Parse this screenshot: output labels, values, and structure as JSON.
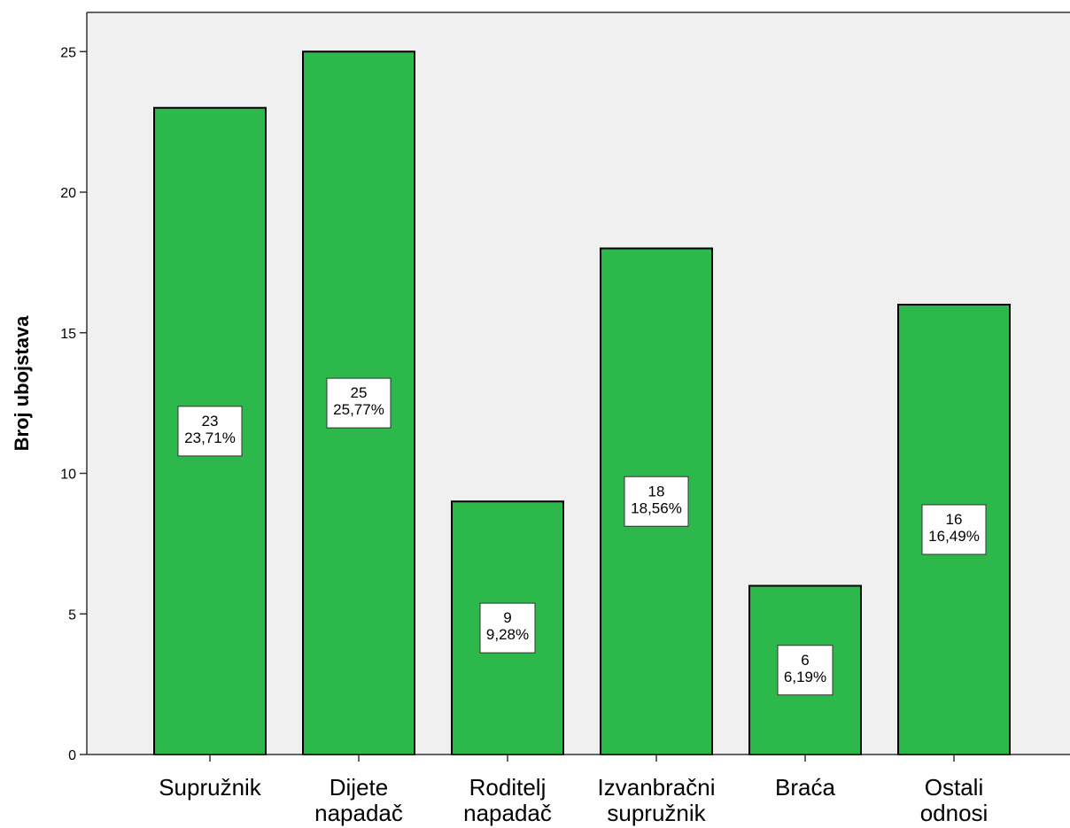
{
  "chart_data": {
    "type": "bar",
    "ylabel": "Broj ubojstava",
    "ylim": [
      0,
      26
    ],
    "yticks": [
      0,
      5,
      10,
      15,
      20,
      25
    ],
    "grid": false,
    "colors": {
      "bar_fill": "#2db84b",
      "plot_bg": "#f0f0f0",
      "axis": "#333333",
      "label_box": "#ffffff"
    },
    "categories": [
      [
        "Supružnik"
      ],
      [
        "Dijete",
        "napadač"
      ],
      [
        "Roditelj",
        "napadač"
      ],
      [
        "Izvanbračni",
        "supružnik"
      ],
      [
        "Braća"
      ],
      [
        "Ostali",
        "odnosi"
      ]
    ],
    "values": [
      23,
      25,
      9,
      18,
      6,
      16
    ],
    "data_labels": [
      [
        "23",
        "23,71%"
      ],
      [
        "25",
        "25,77%"
      ],
      [
        "9",
        "9,28%"
      ],
      [
        "18",
        "18,56%"
      ],
      [
        "6",
        "6,19%"
      ],
      [
        "16",
        "16,49%"
      ]
    ]
  }
}
